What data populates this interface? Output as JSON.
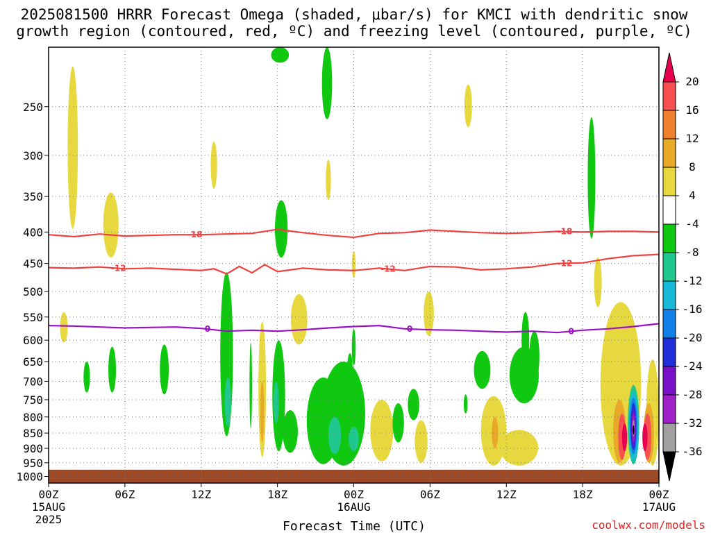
{
  "title_lines": [
    "2025081500 HRRR Forecast Omega (shaded, μbar/s) for KMCI with dendritic snow",
    "growth region (contoured, red, ºC) and freezing level (contoured, purple, ºC)"
  ],
  "credit": "coolwx.com/models",
  "colors": {
    "dgz": "#f04040",
    "freezing": "#9a10c8",
    "ground": "#9e4a25",
    "grid": "#777777"
  },
  "colorbar": {
    "labels": [
      "20",
      "16",
      "12",
      "8",
      "4",
      "-4",
      "-8",
      "-12",
      "-16",
      "-20",
      "-24",
      "-28",
      "-32",
      "-36"
    ],
    "colors": [
      "#e8004e",
      "#f85050",
      "#f08030",
      "#e8a828",
      "#e8d840",
      "#ffffff",
      "#10c810",
      "#20c890",
      "#18b8d8",
      "#1080e8",
      "#2030d8",
      "#7810c8",
      "#a020c8",
      "#a0a0a0",
      "#000000"
    ]
  },
  "chart_data": {
    "type": "time-height cross-section",
    "xlabel": "Forecast Time (UTC)",
    "ylabel": "",
    "x_ticks": [
      {
        "hour": 0,
        "label": "00Z",
        "sub": [
          "15AUG",
          "2025"
        ]
      },
      {
        "hour": 6,
        "label": "06Z",
        "sub": []
      },
      {
        "hour": 12,
        "label": "12Z",
        "sub": []
      },
      {
        "hour": 18,
        "label": "18Z",
        "sub": []
      },
      {
        "hour": 24,
        "label": "00Z",
        "sub": [
          "16AUG"
        ]
      },
      {
        "hour": 30,
        "label": "06Z",
        "sub": []
      },
      {
        "hour": 36,
        "label": "12Z",
        "sub": []
      },
      {
        "hour": 42,
        "label": "18Z",
        "sub": []
      },
      {
        "hour": 48,
        "label": "00Z",
        "sub": [
          "17AUG"
        ]
      }
    ],
    "y_ticks": [
      "250",
      "300",
      "350",
      "400",
      "450",
      "500",
      "550",
      "600",
      "650",
      "700",
      "750",
      "800",
      "850",
      "900",
      "950",
      "1000"
    ],
    "xlim": [
      0,
      48
    ],
    "ylim_hpa": [
      1025,
      200
    ],
    "ground_top_hpa": 975,
    "contours": [
      {
        "label": "-18",
        "color": "dgz",
        "hours": [
          0,
          2,
          4,
          6,
          8,
          10,
          12,
          14,
          16,
          18,
          20,
          22,
          24,
          26,
          28,
          30,
          32,
          34,
          36,
          38,
          40,
          42,
          44,
          46,
          48
        ],
        "hpa": [
          404,
          407,
          403,
          406,
          405,
          404,
          404,
          403,
          402,
          396,
          401,
          405,
          408,
          402,
          401,
          397,
          399,
          401,
          402,
          401,
          399,
          400,
          399,
          399,
          400
        ],
        "label_hours": [
          11.5,
          40.6
        ]
      },
      {
        "label": "-12",
        "color": "dgz",
        "hours": [
          0,
          2,
          4,
          6,
          8,
          10,
          12,
          13,
          14,
          15,
          16,
          17,
          18,
          20,
          22,
          24,
          26,
          28,
          30,
          32,
          34,
          36,
          38,
          40,
          42,
          44,
          46,
          48
        ],
        "hpa": [
          457,
          458,
          456,
          459,
          458,
          460,
          462,
          459,
          468,
          455,
          466,
          452,
          464,
          458,
          461,
          462,
          458,
          462,
          455,
          456,
          461,
          459,
          456,
          450,
          449,
          442,
          437,
          435
        ],
        "label_hours": [
          5.5,
          26.7,
          40.6
        ]
      },
      {
        "label": "0",
        "color": "freezing",
        "hours": [
          0,
          2,
          4,
          6,
          8,
          10,
          12,
          14,
          16,
          18,
          20,
          22,
          24,
          26,
          28,
          30,
          32,
          34,
          36,
          38,
          40,
          42,
          44,
          46,
          48
        ],
        "hpa": [
          568,
          569,
          571,
          573,
          572,
          571,
          574,
          580,
          578,
          580,
          577,
          573,
          570,
          568,
          575,
          577,
          578,
          580,
          582,
          580,
          583,
          578,
          575,
          570,
          564
        ],
        "label_hours": [
          12.5,
          28.4,
          41.1
        ]
      }
    ],
    "omega_features": [
      {
        "bin": "4",
        "hour": 1.9,
        "hpa_top": 215,
        "hpa_bot": 395,
        "width_h": 0.8
      },
      {
        "bin": "4",
        "hour": 4.9,
        "hpa_top": 345,
        "hpa_bot": 440,
        "width_h": 1.2
      },
      {
        "bin": "4",
        "hour": 1.2,
        "hpa_top": 540,
        "hpa_bot": 605,
        "width_h": 0.6
      },
      {
        "bin": "4",
        "hour": 13.0,
        "hpa_top": 285,
        "hpa_bot": 340,
        "width_h": 0.5
      },
      {
        "bin": "4",
        "hour": 22.0,
        "hpa_top": 305,
        "hpa_bot": 355,
        "width_h": 0.4
      },
      {
        "bin": "4",
        "hour": 24.0,
        "hpa_top": 430,
        "hpa_bot": 475,
        "width_h": 0.3
      },
      {
        "bin": "4",
        "hour": 33.0,
        "hpa_top": 230,
        "hpa_bot": 270,
        "width_h": 0.6
      },
      {
        "bin": "4",
        "hour": 43.2,
        "hpa_top": 440,
        "hpa_bot": 530,
        "width_h": 0.6
      },
      {
        "bin": "4",
        "hour": 19.7,
        "hpa_top": 505,
        "hpa_bot": 610,
        "width_h": 1.3
      },
      {
        "bin": "4",
        "hour": 29.9,
        "hpa_top": 500,
        "hpa_bot": 590,
        "width_h": 0.8
      },
      {
        "bin": "4",
        "hour": 16.8,
        "hpa_top": 560,
        "hpa_bot": 930,
        "width_h": 0.6
      },
      {
        "bin": "4",
        "hour": 26.2,
        "hpa_top": 750,
        "hpa_bot": 945,
        "width_h": 1.8
      },
      {
        "bin": "4",
        "hour": 29.3,
        "hpa_top": 810,
        "hpa_bot": 950,
        "width_h": 1.0
      },
      {
        "bin": "4",
        "hour": 35.0,
        "hpa_top": 740,
        "hpa_bot": 960,
        "width_h": 2.0
      },
      {
        "bin": "4",
        "hour": 37.0,
        "hpa_top": 840,
        "hpa_bot": 960,
        "width_h": 3.0
      },
      {
        "bin": "4",
        "hour": 45.0,
        "hpa_top": 520,
        "hpa_bot": 960,
        "width_h": 3.2
      },
      {
        "bin": "4",
        "hour": 47.5,
        "hpa_top": 645,
        "hpa_bot": 960,
        "width_h": 1.0
      },
      {
        "bin": "8",
        "hour": 35.1,
        "hpa_top": 800,
        "hpa_bot": 900,
        "width_h": 0.5
      },
      {
        "bin": "8",
        "hour": 16.8,
        "hpa_top": 700,
        "hpa_bot": 880,
        "width_h": 0.3
      },
      {
        "bin": "8",
        "hour": 44.9,
        "hpa_top": 750,
        "hpa_bot": 950,
        "width_h": 1.0
      },
      {
        "bin": "8",
        "hour": 47.2,
        "hpa_top": 760,
        "hpa_bot": 950,
        "width_h": 0.8
      },
      {
        "bin": "16",
        "hour": 45.1,
        "hpa_top": 790,
        "hpa_bot": 940,
        "width_h": 0.6
      },
      {
        "bin": "16",
        "hour": 47.1,
        "hpa_top": 790,
        "hpa_bot": 940,
        "width_h": 0.6
      },
      {
        "bin": "20",
        "hour": 45.3,
        "hpa_top": 820,
        "hpa_bot": 910,
        "width_h": 0.4
      },
      {
        "bin": "20",
        "hour": 46.9,
        "hpa_top": 820,
        "hpa_bot": 910,
        "width_h": 0.4
      },
      {
        "bin": "-4",
        "hour": 18.2,
        "hpa_top": 200,
        "hpa_bot": 212,
        "width_h": 1.4
      },
      {
        "bin": "-4",
        "hour": 21.9,
        "hpa_top": 200,
        "hpa_bot": 262,
        "width_h": 0.8
      },
      {
        "bin": "-4",
        "hour": 18.3,
        "hpa_top": 355,
        "hpa_bot": 440,
        "width_h": 1.0
      },
      {
        "bin": "-4",
        "hour": 42.7,
        "hpa_top": 260,
        "hpa_bot": 410,
        "width_h": 0.6
      },
      {
        "bin": "-4",
        "hour": 3.0,
        "hpa_top": 650,
        "hpa_bot": 730,
        "width_h": 0.5
      },
      {
        "bin": "-4",
        "hour": 5.0,
        "hpa_top": 615,
        "hpa_bot": 730,
        "width_h": 0.6
      },
      {
        "bin": "-4",
        "hour": 9.1,
        "hpa_top": 610,
        "hpa_bot": 735,
        "width_h": 0.7
      },
      {
        "bin": "-4",
        "hour": 14.0,
        "hpa_top": 465,
        "hpa_bot": 860,
        "width_h": 1.0
      },
      {
        "bin": "-4",
        "hour": 15.9,
        "hpa_top": 605,
        "hpa_bot": 835,
        "width_h": 0.2
      },
      {
        "bin": "-4",
        "hour": 18.1,
        "hpa_top": 600,
        "hpa_bot": 910,
        "width_h": 1.0
      },
      {
        "bin": "-4",
        "hour": 19.0,
        "hpa_top": 780,
        "hpa_bot": 915,
        "width_h": 1.2
      },
      {
        "bin": "-4",
        "hour": 23.2,
        "hpa_top": 650,
        "hpa_bot": 960,
        "width_h": 3.4
      },
      {
        "bin": "-4",
        "hour": 21.6,
        "hpa_top": 690,
        "hpa_bot": 955,
        "width_h": 2.6
      },
      {
        "bin": "-4",
        "hour": 23.7,
        "hpa_top": 630,
        "hpa_bot": 690,
        "width_h": 0.4
      },
      {
        "bin": "-4",
        "hour": 24.0,
        "hpa_top": 575,
        "hpa_bot": 660,
        "width_h": 0.3
      },
      {
        "bin": "-4",
        "hour": 28.7,
        "hpa_top": 720,
        "hpa_bot": 810,
        "width_h": 0.9
      },
      {
        "bin": "-4",
        "hour": 27.5,
        "hpa_top": 760,
        "hpa_bot": 880,
        "width_h": 0.9
      },
      {
        "bin": "-4",
        "hour": 34.1,
        "hpa_top": 625,
        "hpa_bot": 720,
        "width_h": 1.3
      },
      {
        "bin": "-4",
        "hour": 37.4,
        "hpa_top": 615,
        "hpa_bot": 760,
        "width_h": 2.3
      },
      {
        "bin": "-4",
        "hour": 38.2,
        "hpa_top": 580,
        "hpa_bot": 700,
        "width_h": 0.8
      },
      {
        "bin": "-4",
        "hour": 37.5,
        "hpa_top": 540,
        "hpa_bot": 660,
        "width_h": 0.6
      },
      {
        "bin": "-4",
        "hour": 32.8,
        "hpa_top": 735,
        "hpa_bot": 790,
        "width_h": 0.3
      },
      {
        "bin": "-8",
        "hour": 14.1,
        "hpa_top": 690,
        "hpa_bot": 830,
        "width_h": 0.5
      },
      {
        "bin": "-8",
        "hour": 17.9,
        "hpa_top": 700,
        "hpa_bot": 820,
        "width_h": 0.4
      },
      {
        "bin": "-8",
        "hour": 22.5,
        "hpa_top": 800,
        "hpa_bot": 920,
        "width_h": 1.0
      },
      {
        "bin": "-8",
        "hour": 24.0,
        "hpa_top": 830,
        "hpa_bot": 910,
        "width_h": 0.8
      },
      {
        "bin": "-8",
        "hour": 46.0,
        "hpa_top": 710,
        "hpa_bot": 955,
        "width_h": 0.9
      },
      {
        "bin": "-12",
        "hour": 46.0,
        "hpa_top": 730,
        "hpa_bot": 940,
        "width_h": 0.8
      },
      {
        "bin": "-16",
        "hour": 46.0,
        "hpa_top": 745,
        "hpa_bot": 920,
        "width_h": 0.6
      },
      {
        "bin": "-20",
        "hour": 46.0,
        "hpa_top": 760,
        "hpa_bot": 905,
        "width_h": 0.45
      },
      {
        "bin": "-24",
        "hour": 46.0,
        "hpa_top": 780,
        "hpa_bot": 890,
        "width_h": 0.35
      },
      {
        "bin": "-28",
        "hour": 46.0,
        "hpa_top": 795,
        "hpa_bot": 875,
        "width_h": 0.25
      },
      {
        "bin": "-32",
        "hour": 46.0,
        "hpa_top": 810,
        "hpa_bot": 860,
        "width_h": 0.15
      },
      {
        "bin": "-36",
        "hour": 46.0,
        "hpa_top": 825,
        "hpa_bot": 855,
        "width_h": 0.08
      }
    ]
  }
}
